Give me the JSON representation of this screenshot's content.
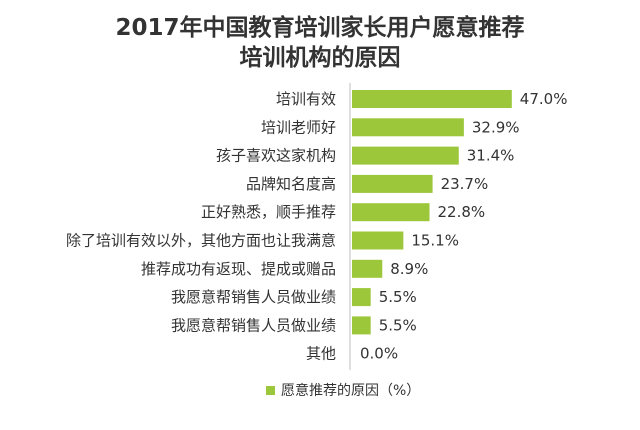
{
  "chart_data": {
    "type": "bar",
    "orientation": "horizontal",
    "title_line1": "2017年中国教育培训家长用户愿意推荐",
    "title_line2": "培训机构的原因",
    "categories": [
      "培训有效",
      "培训老师好",
      "孩子喜欢这家机构",
      "品牌知名度高",
      "正好熟悉，顺手推荐",
      "除了培训有效以外，其他方面也让我满意",
      "推荐成功有返现、提成或赠品",
      "我愿意帮销售人员做业绩",
      "我愿意帮销售人员做业绩",
      "其他"
    ],
    "series": [
      {
        "name": "愿意推荐的原因（%）",
        "values": [
          47.0,
          32.9,
          31.4,
          23.7,
          22.8,
          15.1,
          8.9,
          5.5,
          5.5,
          0.0
        ],
        "value_labels": [
          "47.0%",
          "32.9%",
          "31.4%",
          "23.7%",
          "22.8%",
          "15.1%",
          "8.9%",
          "5.5%",
          "5.5%",
          "0.0%"
        ]
      }
    ],
    "xlim": [
      0,
      50
    ],
    "grid": false,
    "legend_position": "bottom",
    "bar_color": "#9dc73a"
  }
}
